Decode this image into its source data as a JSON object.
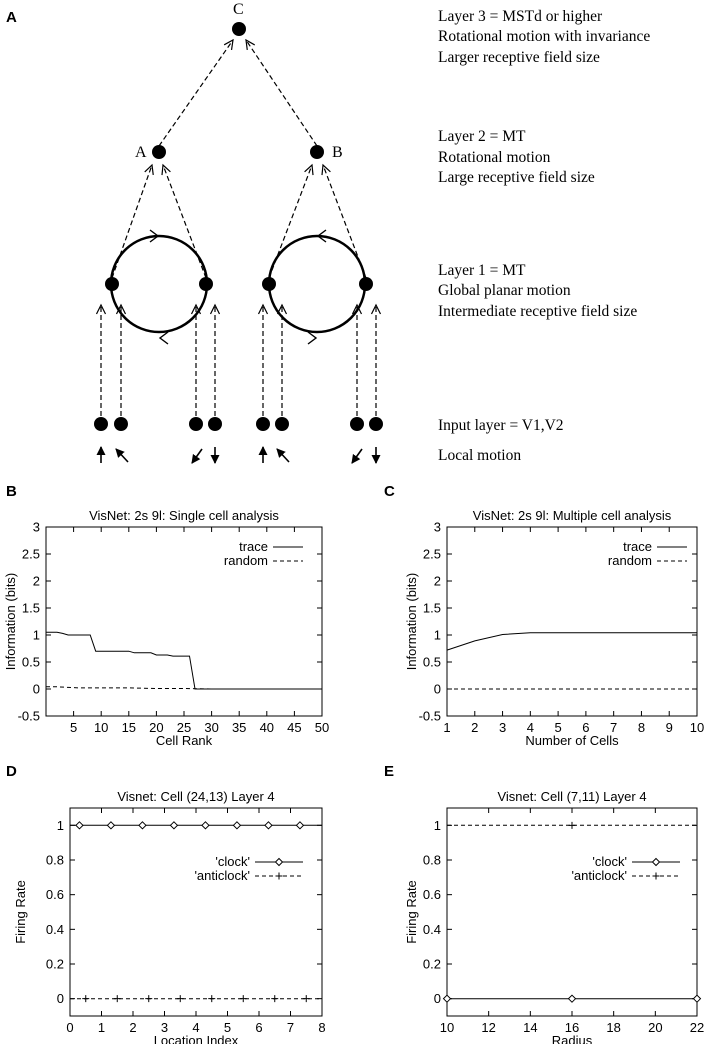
{
  "panel_letters": {
    "a": "A",
    "b": "B",
    "c": "C",
    "d": "D",
    "e": "E"
  },
  "diagram": {
    "node_labels": {
      "top": "C",
      "left": "A",
      "right": "B"
    },
    "layers": [
      {
        "lines": [
          "Layer 3 = MSTd or higher",
          "Rotational motion with invariance",
          "Larger receptive field size"
        ]
      },
      {
        "lines": [
          "Layer 2 = MT",
          "Rotational motion",
          "Large receptive field size"
        ]
      },
      {
        "lines": [
          "Layer 1 = MT",
          "Global planar motion",
          "Intermediate receptive field size"
        ]
      },
      {
        "lines": [
          "Input layer = V1,V2"
        ]
      },
      {
        "lines": [
          "Local motion"
        ]
      }
    ]
  },
  "chart_data": [
    {
      "panel": "B",
      "type": "line",
      "title": "VisNet: 2s 9l: Single cell analysis",
      "xlabel": "Cell Rank",
      "ylabel": "Information (bits)",
      "xlim": [
        0,
        50
      ],
      "ylim": [
        -0.5,
        3
      ],
      "xticks": [
        5,
        10,
        15,
        20,
        25,
        30,
        35,
        40,
        45,
        50
      ],
      "yticks": [
        -0.5,
        0,
        0.5,
        1,
        1.5,
        2,
        2.5,
        3
      ],
      "legend": [
        "trace",
        "random"
      ],
      "series": [
        {
          "name": "trace",
          "style": "solid",
          "x": [
            0,
            1,
            2,
            3,
            4,
            5,
            6,
            7,
            8,
            9,
            10,
            11,
            12,
            13,
            14,
            15,
            16,
            17,
            18,
            19,
            20,
            21,
            22,
            23,
            24,
            25,
            26,
            27,
            28,
            30,
            40,
            50
          ],
          "y": [
            1.05,
            1.05,
            1.05,
            1.03,
            1.0,
            1.0,
            1.0,
            1.0,
            1.0,
            0.7,
            0.7,
            0.7,
            0.7,
            0.7,
            0.7,
            0.7,
            0.67,
            0.67,
            0.67,
            0.67,
            0.63,
            0.63,
            0.63,
            0.61,
            0.61,
            0.61,
            0.61,
            0,
            0,
            0,
            0,
            0
          ]
        },
        {
          "name": "random",
          "style": "dashed",
          "x": [
            0,
            2,
            4,
            6,
            8,
            10,
            15,
            20,
            25,
            30,
            40,
            50
          ],
          "y": [
            0.04,
            0.04,
            0.03,
            0.02,
            0.02,
            0.02,
            0.02,
            0.01,
            0.01,
            0,
            0,
            0
          ]
        }
      ]
    },
    {
      "panel": "C",
      "type": "line",
      "title": "VisNet: 2s 9l: Multiple cell analysis",
      "xlabel": "Number of Cells",
      "ylabel": "Information (bits)",
      "xlim": [
        1,
        10
      ],
      "ylim": [
        -0.5,
        3
      ],
      "xticks": [
        1,
        2,
        3,
        4,
        5,
        6,
        7,
        8,
        9,
        10
      ],
      "yticks": [
        -0.5,
        0,
        0.5,
        1,
        1.5,
        2,
        2.5,
        3
      ],
      "legend": [
        "trace",
        "random"
      ],
      "series": [
        {
          "name": "trace",
          "style": "solid",
          "x": [
            1,
            2,
            3,
            4,
            5,
            6,
            7,
            8,
            9,
            10
          ],
          "y": [
            0.72,
            0.89,
            1.01,
            1.04,
            1.04,
            1.04,
            1.04,
            1.04,
            1.04,
            1.04
          ]
        },
        {
          "name": "random",
          "style": "dashed",
          "x": [
            1,
            10
          ],
          "y": [
            0,
            0
          ]
        }
      ]
    },
    {
      "panel": "D",
      "type": "line",
      "title": "Visnet: Cell (24,13) Layer 4",
      "xlabel": "Location Index",
      "ylabel": "Firing Rate",
      "xlim": [
        0,
        8
      ],
      "ylim": [
        -0.1,
        1.1
      ],
      "xticks": [
        0,
        1,
        2,
        3,
        4,
        5,
        6,
        7,
        8
      ],
      "yticks": [
        0,
        0.2,
        0.4,
        0.6,
        0.8,
        1
      ],
      "legend": [
        "'clock'",
        "'anticlock'"
      ],
      "series": [
        {
          "name": "'clock'",
          "style": "solid",
          "marker": "diamond",
          "x": [
            0,
            0.3,
            1.3,
            2.3,
            3.3,
            4.3,
            5.3,
            6.3,
            7.3,
            8
          ],
          "y": [
            1,
            1,
            1,
            1,
            1,
            1,
            1,
            1,
            1,
            1
          ],
          "marker_x": [
            0.3,
            1.3,
            2.3,
            3.3,
            4.3,
            5.3,
            6.3,
            7.3
          ]
        },
        {
          "name": "'anticlock'",
          "style": "dashed",
          "marker": "plus",
          "x": [
            0,
            8
          ],
          "y": [
            0,
            0
          ],
          "marker_x": [
            0.5,
            1.5,
            2.5,
            3.5,
            4.5,
            5.5,
            6.5,
            7.5
          ]
        }
      ]
    },
    {
      "panel": "E",
      "type": "line",
      "title": "Visnet: Cell (7,11) Layer 4",
      "xlabel": "Radius",
      "ylabel": "Firing Rate",
      "xlim": [
        10,
        22
      ],
      "ylim": [
        -0.1,
        1.1
      ],
      "xticks": [
        10,
        12,
        14,
        16,
        18,
        20,
        22
      ],
      "yticks": [
        0,
        0.2,
        0.4,
        0.6,
        0.8,
        1
      ],
      "legend": [
        "'clock'",
        "'anticlock'"
      ],
      "series": [
        {
          "name": "'clock'",
          "style": "solid",
          "marker": "diamond",
          "x": [
            10,
            22
          ],
          "y": [
            0,
            0
          ],
          "marker_x": [
            10,
            16,
            22
          ]
        },
        {
          "name": "'anticlock'",
          "style": "dashed",
          "marker": "plus",
          "x": [
            10,
            22
          ],
          "y": [
            1,
            1
          ],
          "marker_x": [
            16
          ]
        }
      ]
    }
  ]
}
